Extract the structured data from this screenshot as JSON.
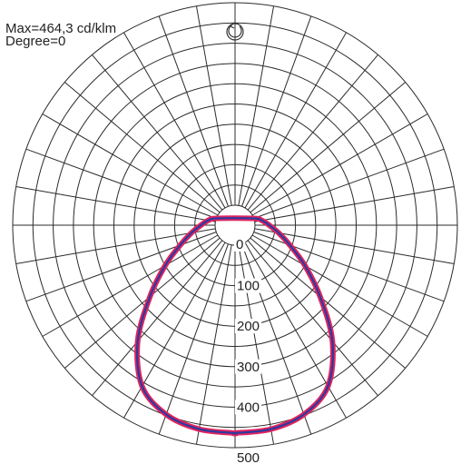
{
  "chart_data": {
    "type": "polar",
    "header": {
      "max_label": "Max=464,3 cd/klm",
      "degree_label": "Degree=0"
    },
    "radial_ticks": [
      "0",
      "100",
      "200",
      "300",
      "400",
      "500"
    ],
    "radial_tick_values": [
      0,
      100,
      200,
      300,
      400,
      500
    ],
    "radial_range": [
      0,
      500
    ],
    "grid": true,
    "angular_spoke_step_deg": 10,
    "units": "cd/klm",
    "series": [
      {
        "color": "#2a3aa0",
        "halo_color": "#e0245e",
        "points": [
          {
            "angle": 0,
            "value": 464
          },
          {
            "angle": 10,
            "value": 462
          },
          {
            "angle": 20,
            "value": 448
          },
          {
            "angle": 30,
            "value": 410
          },
          {
            "angle": 40,
            "value": 325
          },
          {
            "angle": 50,
            "value": 225
          },
          {
            "angle": 60,
            "value": 150
          },
          {
            "angle": 70,
            "value": 95
          },
          {
            "angle": 80,
            "value": 60
          },
          {
            "angle": 90,
            "value": 35
          },
          {
            "angle": 100,
            "value": 18
          },
          {
            "angle": 110,
            "value": 0
          }
        ]
      }
    ]
  },
  "icons": {
    "rotation": "rotation-arrow-icon"
  }
}
